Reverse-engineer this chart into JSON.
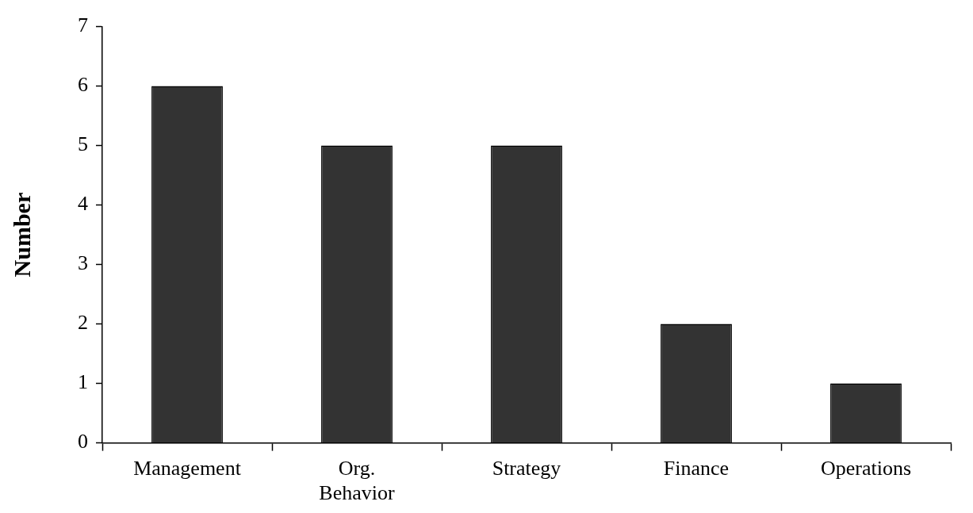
{
  "chart_data": {
    "type": "bar",
    "ylabel": "Number",
    "categories": [
      "Management",
      "Org. Behavior",
      "Strategy",
      "Finance",
      "Operations"
    ],
    "values": [
      6,
      5,
      5,
      2,
      1
    ],
    "color": "#333333",
    "ylim": [
      0,
      7
    ],
    "yticks": [
      0,
      1,
      2,
      3,
      4,
      5,
      6,
      7
    ],
    "grid": false,
    "legend": false
  }
}
